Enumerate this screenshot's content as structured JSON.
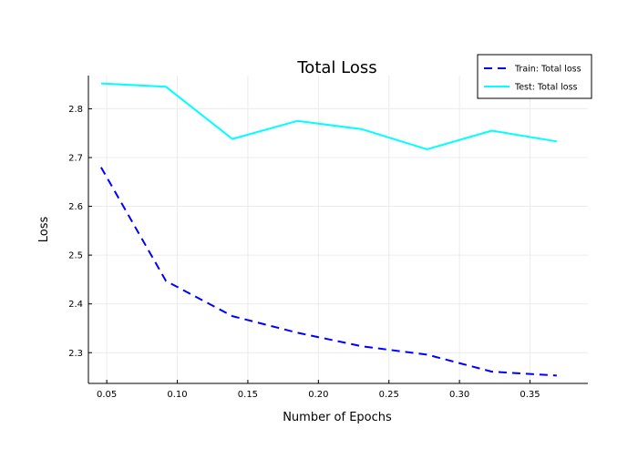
{
  "chart_data": {
    "type": "line",
    "title": "Total Loss",
    "xlabel": "Number of Epochs",
    "ylabel": "Loss",
    "xlim": [
      0.037,
      0.391
    ],
    "ylim": [
      2.237,
      2.868
    ],
    "xticks": [
      0.05,
      0.1,
      0.15,
      0.2,
      0.25,
      0.3,
      0.35
    ],
    "xtick_labels": [
      "0.05",
      "0.10",
      "0.15",
      "0.20",
      "0.25",
      "0.30",
      "0.35"
    ],
    "yticks": [
      2.3,
      2.4,
      2.5,
      2.6,
      2.7,
      2.8
    ],
    "ytick_labels": [
      "2.3",
      "2.4",
      "2.5",
      "2.6",
      "2.7",
      "2.8"
    ],
    "grid": true,
    "legend_position": "top-right",
    "x": [
      0.046,
      0.092,
      0.139,
      0.185,
      0.231,
      0.277,
      0.323,
      0.369
    ],
    "series": [
      {
        "name": "Train: Total loss",
        "color": "#0000ff",
        "dash": "dashed",
        "values": [
          2.68,
          2.447,
          2.375,
          2.341,
          2.313,
          2.296,
          2.261,
          2.253
        ]
      },
      {
        "name": "Test: Total loss",
        "color": "#00ffff",
        "dash": "solid",
        "values": [
          2.852,
          2.845,
          2.738,
          2.775,
          2.758,
          2.717,
          2.755,
          2.733
        ]
      }
    ]
  }
}
